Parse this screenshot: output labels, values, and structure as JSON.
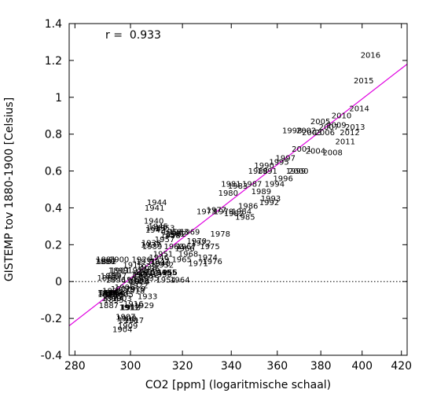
{
  "chart_data": {
    "type": "scatter",
    "xlabel": "CO2 [ppm] (logaritmische schaal)",
    "ylabel": "GISTEMP tov 1880-1900 [Celsius]",
    "annotation": "r =  0.933",
    "xscale": "log",
    "xlim": [
      278,
      423
    ],
    "ylim": [
      -0.4,
      1.4
    ],
    "xticks": [
      "280",
      "300",
      "320",
      "340",
      "360",
      "380",
      "400",
      "420"
    ],
    "yticks": [
      "-0.4",
      "-0.2",
      "0",
      "0.2",
      "0.4",
      "0.6",
      "0.8",
      "1",
      "1.2",
      "1.4"
    ],
    "zero_line": "dotted",
    "fit_line": {
      "color": "#e000e0",
      "from": [
        278,
        -0.24
      ],
      "to": [
        423,
        1.18
      ]
    },
    "marker": "year label",
    "points": [
      {
        "label": "1880",
        "x": 290.7,
        "y": 0.11
      },
      {
        "label": "1881",
        "x": 291.0,
        "y": 0.12
      },
      {
        "label": "1882",
        "x": 291.2,
        "y": 0.11
      },
      {
        "label": "1883",
        "x": 291.4,
        "y": 0.02
      },
      {
        "label": "1884",
        "x": 291.5,
        "y": -0.06
      },
      {
        "label": "1885",
        "x": 291.6,
        "y": -0.07
      },
      {
        "label": "1886",
        "x": 291.8,
        "y": -0.06
      },
      {
        "label": "1887",
        "x": 292.0,
        "y": -0.13
      },
      {
        "label": "1888",
        "x": 292.3,
        "y": -0.06
      },
      {
        "label": "1889",
        "x": 292.6,
        "y": 0.03
      },
      {
        "label": "1890",
        "x": 293.0,
        "y": -0.09
      },
      {
        "label": "1891",
        "x": 293.3,
        "y": -0.05
      },
      {
        "label": "1892",
        "x": 293.6,
        "y": -0.08
      },
      {
        "label": "1893",
        "x": 293.8,
        "y": -0.1
      },
      {
        "label": "1894",
        "x": 294.0,
        "y": -0.06
      },
      {
        "label": "1895",
        "x": 294.2,
        "y": -0.07
      },
      {
        "label": "1896",
        "x": 294.6,
        "y": 0.01
      },
      {
        "label": "1897",
        "x": 294.9,
        "y": 0.03
      },
      {
        "label": "1898",
        "x": 295.2,
        "y": -0.06
      },
      {
        "label": "1899",
        "x": 295.5,
        "y": 0.06
      },
      {
        "label": "1900",
        "x": 295.8,
        "y": 0.12
      },
      {
        "label": "1901",
        "x": 296.1,
        "y": 0.06
      },
      {
        "label": "1902",
        "x": 296.4,
        "y": -0.04
      },
      {
        "label": "1903",
        "x": 296.8,
        "y": -0.09
      },
      {
        "label": "1904",
        "x": 297.0,
        "y": -0.26
      },
      {
        "label": "1905",
        "x": 297.4,
        "y": -0.07
      },
      {
        "label": "1906",
        "x": 297.8,
        "y": -0.03
      },
      {
        "label": "1907",
        "x": 298.2,
        "y": -0.19
      },
      {
        "label": "1908",
        "x": 298.5,
        "y": -0.2
      },
      {
        "label": "1909",
        "x": 299.0,
        "y": -0.24
      },
      {
        "label": "1910",
        "x": 299.2,
        "y": -0.21
      },
      {
        "label": "1911",
        "x": 299.5,
        "y": -0.14
      },
      {
        "label": "1912",
        "x": 299.8,
        "y": -0.14
      },
      {
        "label": "1913",
        "x": 300.1,
        "y": -0.14
      },
      {
        "label": "1914",
        "x": 300.5,
        "y": 0.01
      },
      {
        "label": "1915",
        "x": 300.9,
        "y": 0.09
      },
      {
        "label": "1916",
        "x": 301.1,
        "y": -0.12
      },
      {
        "label": "1917",
        "x": 301.3,
        "y": -0.21
      },
      {
        "label": "1918",
        "x": 301.6,
        "y": -0.05
      },
      {
        "label": "1919",
        "x": 301.9,
        "y": -0.04
      },
      {
        "label": "1920",
        "x": 302.2,
        "y": 0.01
      },
      {
        "label": "1921",
        "x": 302.6,
        "y": 0.06
      },
      {
        "label": "1922",
        "x": 302.9,
        "y": -0.02
      },
      {
        "label": "1923",
        "x": 303.2,
        "y": 0.0
      },
      {
        "label": "1924",
        "x": 303.6,
        "y": 0.0
      },
      {
        "label": "1925",
        "x": 303.9,
        "y": 0.04
      },
      {
        "label": "1926",
        "x": 304.2,
        "y": 0.12
      },
      {
        "label": "1927",
        "x": 304.5,
        "y": 0.04
      },
      {
        "label": "1928",
        "x": 304.8,
        "y": 0.03
      },
      {
        "label": "1929",
        "x": 305.1,
        "y": -0.13
      },
      {
        "label": "1930",
        "x": 305.4,
        "y": 0.05
      },
      {
        "label": "1931",
        "x": 305.8,
        "y": 0.11
      },
      {
        "label": "1932",
        "x": 306.1,
        "y": 0.08
      },
      {
        "label": "1933",
        "x": 306.4,
        "y": -0.08
      },
      {
        "label": "1934",
        "x": 306.7,
        "y": 0.05
      },
      {
        "label": "1935",
        "x": 307.0,
        "y": 0.02
      },
      {
        "label": "1936",
        "x": 307.3,
        "y": 0.07
      },
      {
        "label": "1937",
        "x": 307.6,
        "y": 0.2
      },
      {
        "label": "1938",
        "x": 307.9,
        "y": 0.21
      },
      {
        "label": "1939",
        "x": 308.2,
        "y": 0.19
      },
      {
        "label": "1940",
        "x": 308.8,
        "y": 0.33
      },
      {
        "label": "1941",
        "x": 309.1,
        "y": 0.4
      },
      {
        "label": "1942",
        "x": 309.4,
        "y": 0.28
      },
      {
        "label": "1943",
        "x": 309.7,
        "y": 0.29
      },
      {
        "label": "1944",
        "x": 310.0,
        "y": 0.43
      },
      {
        "label": "1945",
        "x": 310.5,
        "y": 0.3
      },
      {
        "label": "1946",
        "x": 310.8,
        "y": 0.13
      },
      {
        "label": "1947",
        "x": 311.1,
        "y": 0.11
      },
      {
        "label": "1948",
        "x": 311.4,
        "y": 0.1
      },
      {
        "label": "1949",
        "x": 311.7,
        "y": 0.05
      },
      {
        "label": "1950",
        "x": 312.0,
        "y": 0.04
      },
      {
        "label": "1951",
        "x": 312.4,
        "y": 0.15
      },
      {
        "label": "1952",
        "x": 312.7,
        "y": 0.09
      },
      {
        "label": "1953",
        "x": 313.1,
        "y": 0.29
      },
      {
        "label": "1954",
        "x": 313.5,
        "y": 0.01
      },
      {
        "label": "1955",
        "x": 313.9,
        "y": 0.05
      },
      {
        "label": "1956",
        "x": 314.1,
        "y": 0.05
      },
      {
        "label": "1957",
        "x": 313.0,
        "y": 0.23
      },
      {
        "label": "1958",
        "x": 315.3,
        "y": 0.25
      },
      {
        "label": "1959",
        "x": 315.9,
        "y": 0.27
      },
      {
        "label": "1960",
        "x": 316.6,
        "y": 0.19
      },
      {
        "label": "1961",
        "x": 317.0,
        "y": 0.26
      },
      {
        "label": "1962",
        "x": 317.6,
        "y": 0.26
      },
      {
        "label": "1963",
        "x": 318.5,
        "y": 0.27
      },
      {
        "label": "1964",
        "x": 319.0,
        "y": 0.01
      },
      {
        "label": "1965",
        "x": 319.7,
        "y": 0.12
      },
      {
        "label": "1966",
        "x": 320.9,
        "y": 0.18
      },
      {
        "label": "1967",
        "x": 321.5,
        "y": 0.19
      },
      {
        "label": "1968",
        "x": 322.3,
        "y": 0.15
      },
      {
        "label": "1969",
        "x": 323.0,
        "y": 0.27
      },
      {
        "label": "1970",
        "x": 325.7,
        "y": 0.22
      },
      {
        "label": "1971",
        "x": 326.3,
        "y": 0.1
      },
      {
        "label": "1972",
        "x": 327.5,
        "y": 0.21
      },
      {
        "label": "1973",
        "x": 329.7,
        "y": 0.38
      },
      {
        "label": "1974",
        "x": 330.2,
        "y": 0.13
      },
      {
        "label": "1975",
        "x": 331.1,
        "y": 0.19
      },
      {
        "label": "1976",
        "x": 332.1,
        "y": 0.11
      },
      {
        "label": "1977",
        "x": 333.8,
        "y": 0.39
      },
      {
        "label": "1978",
        "x": 335.4,
        "y": 0.26
      },
      {
        "label": "1979",
        "x": 336.8,
        "y": 0.38
      },
      {
        "label": "1980",
        "x": 338.7,
        "y": 0.48
      },
      {
        "label": "1981",
        "x": 339.9,
        "y": 0.53
      },
      {
        "label": "1982",
        "x": 341.1,
        "y": 0.37
      },
      {
        "label": "1983",
        "x": 342.8,
        "y": 0.52
      },
      {
        "label": "1984",
        "x": 344.4,
        "y": 0.38
      },
      {
        "label": "1985",
        "x": 345.9,
        "y": 0.35
      },
      {
        "label": "1986",
        "x": 347.2,
        "y": 0.41
      },
      {
        "label": "1987",
        "x": 348.9,
        "y": 0.53
      },
      {
        "label": "1988",
        "x": 351.5,
        "y": 0.6
      },
      {
        "label": "1989",
        "x": 352.9,
        "y": 0.49
      },
      {
        "label": "1990",
        "x": 354.2,
        "y": 0.63
      },
      {
        "label": "1991",
        "x": 355.6,
        "y": 0.6
      },
      {
        "label": "1992",
        "x": 356.4,
        "y": 0.43
      },
      {
        "label": "1993",
        "x": 357.1,
        "y": 0.45
      },
      {
        "label": "1994",
        "x": 358.8,
        "y": 0.53
      },
      {
        "label": "1995",
        "x": 360.8,
        "y": 0.65
      },
      {
        "label": "1996",
        "x": 362.6,
        "y": 0.56
      },
      {
        "label": "1997",
        "x": 363.7,
        "y": 0.67
      },
      {
        "label": "1998",
        "x": 366.7,
        "y": 0.82
      },
      {
        "label": "1999",
        "x": 368.4,
        "y": 0.6
      },
      {
        "label": "2000",
        "x": 369.6,
        "y": 0.6
      },
      {
        "label": "2001",
        "x": 371.1,
        "y": 0.72
      },
      {
        "label": "2002",
        "x": 373.2,
        "y": 0.82
      },
      {
        "label": "2003",
        "x": 375.8,
        "y": 0.81
      },
      {
        "label": "2004",
        "x": 377.5,
        "y": 0.71
      },
      {
        "label": "2005",
        "x": 379.8,
        "y": 0.87
      },
      {
        "label": "2006",
        "x": 381.9,
        "y": 0.81
      },
      {
        "label": "2007",
        "x": 383.8,
        "y": 0.84
      },
      {
        "label": "2008",
        "x": 385.6,
        "y": 0.7
      },
      {
        "label": "2009",
        "x": 387.4,
        "y": 0.85
      },
      {
        "label": "2010",
        "x": 389.9,
        "y": 0.9
      },
      {
        "label": "2011",
        "x": 391.7,
        "y": 0.76
      },
      {
        "label": "2012",
        "x": 393.9,
        "y": 0.81
      },
      {
        "label": "2013",
        "x": 396.5,
        "y": 0.84
      },
      {
        "label": "2014",
        "x": 398.6,
        "y": 0.94
      },
      {
        "label": "2015",
        "x": 400.8,
        "y": 1.09
      },
      {
        "label": "2016",
        "x": 404.2,
        "y": 1.23
      }
    ]
  }
}
